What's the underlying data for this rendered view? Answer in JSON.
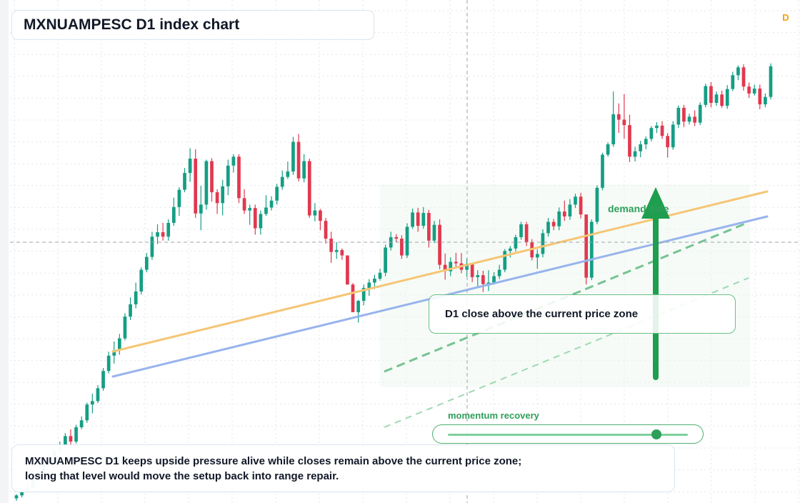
{
  "chart": {
    "title": "MXNUAMPESC D1 index chart",
    "timeframe_badge": "D",
    "zone_label": "D1 close above the current price zone",
    "demand_label": "demand side",
    "momentum_label": "momentum recovery",
    "momentum_level": 0.87,
    "caption_line1": "MXNUAMPESC D1 keeps upside pressure alive while closes remain above the current price zone;",
    "caption_line2": "losing that level would move the setup back into range repair."
  },
  "colors": {
    "bull": "#159e84",
    "bear": "#e0394f",
    "trend_upper": "#f5c675",
    "trend_lower": "#98b4ec",
    "projection": "#5fba80",
    "arrow": "#1e9e4e"
  },
  "chart_data": {
    "type": "candlestick",
    "title": "MXNUAMPESC D1 index chart",
    "price_scale": "unlabeled (no axis values printed)",
    "ohlc_relative": [
      [
        0.8,
        1.6,
        0.3,
        1.4
      ],
      [
        1.4,
        2.6,
        1.0,
        2.3
      ],
      [
        2.3,
        3.8,
        2.0,
        3.0
      ],
      [
        3.0,
        4.9,
        2.8,
        4.7
      ],
      [
        4.7,
        6.5,
        4.4,
        5.9
      ],
      [
        5.9,
        8.4,
        5.6,
        7.7
      ],
      [
        7.7,
        9.6,
        7.1,
        8.6
      ],
      [
        8.6,
        10.7,
        8.2,
        10.4
      ],
      [
        10.4,
        12.3,
        9.6,
        11.2
      ],
      [
        11.2,
        14.0,
        10.7,
        13.4
      ],
      [
        13.4,
        14.8,
        11.5,
        12.3
      ],
      [
        12.3,
        15.7,
        11.9,
        15.2
      ],
      [
        15.2,
        17.4,
        14.8,
        16.6
      ],
      [
        16.6,
        20.2,
        16.1,
        19.8
      ],
      [
        19.8,
        22.0,
        18.0,
        20.5
      ],
      [
        20.5,
        23.7,
        20.1,
        23.1
      ],
      [
        23.1,
        27.2,
        22.6,
        26.6
      ],
      [
        26.6,
        30.5,
        26.1,
        29.7
      ],
      [
        29.7,
        32.6,
        28.1,
        30.8
      ],
      [
        30.8,
        34.1,
        29.9,
        33.2
      ],
      [
        33.2,
        38.3,
        32.8,
        37.6
      ],
      [
        37.6,
        41.5,
        36.9,
        40.1
      ],
      [
        40.1,
        44.5,
        39.3,
        42.7
      ],
      [
        42.7,
        47.6,
        42.1,
        47.1
      ],
      [
        47.1,
        50.5,
        46.6,
        49.7
      ],
      [
        49.7,
        54.8,
        49.1,
        53.8
      ],
      [
        53.8,
        56.3,
        52.3,
        54.7
      ],
      [
        54.7,
        56.6,
        53.0,
        53.8
      ],
      [
        53.8,
        57.3,
        53.0,
        56.6
      ],
      [
        56.6,
        61.7,
        56.0,
        59.8
      ],
      [
        59.8,
        63.8,
        58.0,
        63.3
      ],
      [
        63.3,
        67.7,
        62.8,
        66.7
      ],
      [
        66.7,
        71.7,
        64.9,
        69.6
      ],
      [
        69.6,
        71.5,
        57.6,
        58.5
      ],
      [
        58.5,
        64.1,
        55.1,
        60.3
      ],
      [
        60.3,
        69.4,
        59.3,
        69.1
      ],
      [
        69.1,
        69.7,
        60.9,
        62.8
      ],
      [
        62.8,
        63.4,
        58.4,
        60.6
      ],
      [
        60.6,
        65.3,
        58.1,
        64.0
      ],
      [
        64.0,
        69.4,
        62.2,
        68.2
      ],
      [
        68.2,
        70.5,
        66.8,
        70.0
      ],
      [
        70.0,
        70.5,
        60.6,
        61.6
      ],
      [
        61.6,
        63.4,
        58.4,
        59.1
      ],
      [
        59.1,
        60.3,
        56.2,
        59.6
      ],
      [
        59.6,
        60.3,
        54.2,
        55.5
      ],
      [
        55.5,
        59.1,
        54.2,
        58.4
      ],
      [
        58.4,
        62.2,
        58.0,
        59.7
      ],
      [
        59.7,
        62.0,
        59.1,
        61.1
      ],
      [
        61.1,
        64.5,
        60.3,
        63.9
      ],
      [
        63.9,
        67.2,
        63.3,
        65.9
      ],
      [
        65.9,
        69.0,
        65.5,
        67.0
      ],
      [
        67.0,
        74.0,
        66.3,
        73.0
      ],
      [
        73.0,
        74.6,
        65.0,
        65.6
      ],
      [
        65.6,
        70.5,
        64.8,
        69.1
      ],
      [
        69.1,
        69.6,
        57.6,
        58.1
      ],
      [
        58.1,
        60.6,
        56.9,
        59.1
      ],
      [
        59.1,
        59.4,
        55.1,
        57.0
      ],
      [
        57.0,
        57.6,
        52.4,
        53.4
      ],
      [
        53.4,
        54.8,
        48.5,
        50.7
      ],
      [
        50.7,
        52.7,
        49.3,
        51.1
      ],
      [
        51.1,
        51.4,
        49.1,
        50.0
      ],
      [
        50.0,
        49.7,
        44.8,
        44.1
      ],
      [
        44.1,
        44.4,
        41.5,
        38.5
      ],
      [
        38.5,
        41.0,
        36.4,
        40.8
      ],
      [
        40.8,
        44.1,
        39.9,
        43.4
      ],
      [
        43.4,
        45.2,
        41.8,
        44.5
      ],
      [
        44.5,
        46.1,
        43.2,
        45.3
      ],
      [
        45.3,
        47.3,
        44.9,
        46.5
      ],
      [
        46.5,
        52.2,
        45.8,
        51.6
      ],
      [
        51.6,
        54.8,
        51.0,
        53.7
      ],
      [
        53.7,
        54.3,
        52.7,
        53.4
      ],
      [
        53.4,
        54.1,
        49.3,
        50.0
      ],
      [
        50.0,
        56.5,
        49.5,
        55.8
      ],
      [
        55.8,
        59.5,
        55.4,
        58.7
      ],
      [
        58.7,
        59.6,
        54.8,
        56.0
      ],
      [
        56.0,
        59.8,
        55.4,
        58.6
      ],
      [
        58.6,
        59.2,
        51.6,
        53.0
      ],
      [
        53.0,
        57.0,
        52.5,
        56.2
      ],
      [
        56.2,
        57.3,
        47.2,
        48.1
      ],
      [
        48.1,
        50.4,
        45.1,
        46.8
      ],
      [
        46.8,
        49.6,
        45.8,
        48.7
      ],
      [
        48.7,
        50.5,
        47.5,
        48.4
      ],
      [
        48.4,
        50.5,
        46.4,
        47.1
      ],
      [
        47.1,
        49.4,
        45.7,
        48.3
      ],
      [
        48.3,
        48.5,
        44.6,
        45.6
      ],
      [
        45.6,
        47.0,
        43.4,
        46.0
      ],
      [
        46.0,
        46.9,
        42.6,
        44.2
      ],
      [
        44.2,
        47.0,
        42.8,
        44.5
      ],
      [
        44.5,
        46.6,
        44.1,
        45.8
      ],
      [
        45.8,
        48.1,
        45.2,
        47.1
      ],
      [
        47.1,
        51.3,
        46.6,
        50.9
      ],
      [
        50.9,
        51.9,
        49.6,
        51.4
      ],
      [
        51.4,
        54.2,
        50.8,
        53.7
      ],
      [
        53.7,
        56.8,
        53.2,
        56.3
      ],
      [
        56.3,
        56.8,
        51.9,
        52.7
      ],
      [
        52.7,
        53.3,
        49.0,
        49.6
      ],
      [
        49.6,
        51.2,
        47.3,
        50.3
      ],
      [
        50.3,
        55.3,
        49.6,
        54.5
      ],
      [
        54.5,
        57.6,
        53.8,
        56.8
      ],
      [
        56.8,
        57.4,
        55.1,
        55.9
      ],
      [
        55.9,
        59.7,
        55.1,
        58.9
      ],
      [
        58.9,
        61.1,
        57.0,
        57.9
      ],
      [
        57.9,
        61.4,
        57.2,
        60.3
      ],
      [
        60.3,
        62.5,
        59.6,
        61.9
      ],
      [
        61.9,
        62.7,
        57.5,
        58.3
      ],
      [
        58.3,
        58.2,
        44.1,
        45.5
      ],
      [
        45.5,
        57.3,
        45.0,
        56.8
      ],
      [
        56.8,
        64.2,
        56.3,
        63.7
      ],
      [
        63.7,
        70.8,
        63.2,
        70.4
      ],
      [
        70.4,
        72.9,
        70.0,
        72.5
      ],
      [
        72.5,
        83.2,
        72.0,
        78.6
      ],
      [
        78.6,
        80.8,
        74.8,
        77.5
      ],
      [
        77.5,
        82.7,
        73.6,
        76.4
      ],
      [
        76.4,
        78.5,
        68.9,
        70.0
      ],
      [
        70.0,
        72.0,
        69.0,
        71.1
      ],
      [
        71.1,
        73.2,
        69.9,
        72.5
      ],
      [
        72.5,
        74.1,
        71.5,
        73.6
      ],
      [
        73.6,
        76.2,
        73.1,
        75.8
      ],
      [
        75.8,
        77.0,
        74.8,
        76.3
      ],
      [
        76.3,
        77.2,
        73.6,
        74.2
      ],
      [
        74.2,
        74.8,
        69.8,
        71.9
      ],
      [
        71.9,
        77.2,
        71.4,
        76.5
      ],
      [
        76.5,
        80.4,
        75.8,
        79.9
      ],
      [
        79.9,
        80.5,
        76.0,
        77.1
      ],
      [
        77.1,
        78.7,
        76.5,
        78.1
      ],
      [
        78.1,
        79.4,
        76.2,
        76.9
      ],
      [
        76.9,
        81.0,
        76.4,
        80.5
      ],
      [
        80.5,
        84.8,
        80.0,
        84.3
      ],
      [
        84.3,
        85.1,
        80.0,
        80.9
      ],
      [
        80.9,
        83.2,
        80.3,
        82.6
      ],
      [
        82.6,
        83.4,
        79.9,
        80.3
      ],
      [
        80.3,
        84.5,
        79.7,
        83.7
      ],
      [
        83.7,
        87.2,
        83.3,
        86.5
      ],
      [
        86.5,
        88.5,
        85.5,
        88.1
      ],
      [
        88.1,
        88.7,
        83.4,
        84.2
      ],
      [
        84.2,
        85.0,
        81.9,
        82.8
      ],
      [
        82.8,
        84.6,
        82.4,
        83.8
      ],
      [
        83.8,
        84.6,
        79.6,
        80.6
      ],
      [
        80.6,
        82.8,
        80.0,
        82.1
      ],
      [
        82.1,
        88.9,
        81.6,
        88.3
      ]
    ]
  }
}
